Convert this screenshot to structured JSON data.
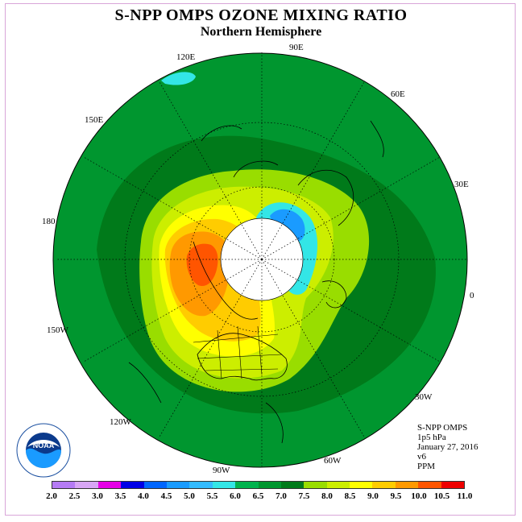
{
  "header": {
    "title": "S-NPP OMPS OZONE MIXING RATIO",
    "subtitle": "Northern Hemisphere"
  },
  "longitude_labels": [
    "0",
    "30E",
    "60E",
    "90E",
    "120E",
    "150E",
    "180",
    "150W",
    "120W",
    "90W",
    "60W",
    "30W"
  ],
  "info": {
    "instrument": "S-NPP OMPS",
    "level": "1p5 hPa",
    "date": "January 27, 2016",
    "version": "v6",
    "units": "PPM"
  },
  "colorbar": {
    "ticks": [
      "2.0",
      "2.5",
      "3.0",
      "3.5",
      "4.0",
      "4.5",
      "5.0",
      "5.5",
      "6.0",
      "6.5",
      "7.0",
      "7.5",
      "8.0",
      "8.5",
      "9.0",
      "9.5",
      "10.0",
      "10.5",
      "11.0"
    ],
    "colors": [
      "#b57bf5",
      "#d8a6f5",
      "#e600e6",
      "#0000e6",
      "#0066ff",
      "#1a9bff",
      "#33bbff",
      "#33e6e6",
      "#00b34d",
      "#00962f",
      "#007a1a",
      "#99dd00",
      "#ccee00",
      "#ffff00",
      "#ffcc00",
      "#ff9900",
      "#ff5500",
      "#ee0000",
      "#8b4513"
    ]
  },
  "map_colors": {
    "ocean_band": "#00962f",
    "dark_band": "#007a1a",
    "mid_band": "#00b34d",
    "light_green": "#99dd00",
    "yellow_green": "#ccee00",
    "yellow": "#ffff00",
    "orange": "#ff9900",
    "light_orange": "#ffcc00",
    "red_orange": "#ff5500",
    "cyan": "#33e6e6",
    "blue": "#1a9bff",
    "no_data": "#ffffff"
  },
  "logo": {
    "text": "NOAA",
    "ring_text": "NATIONAL OCEANIC AND ATMOSPHERIC ADMINISTRATION · U.S. DEPARTMENT OF COMMERCE"
  }
}
